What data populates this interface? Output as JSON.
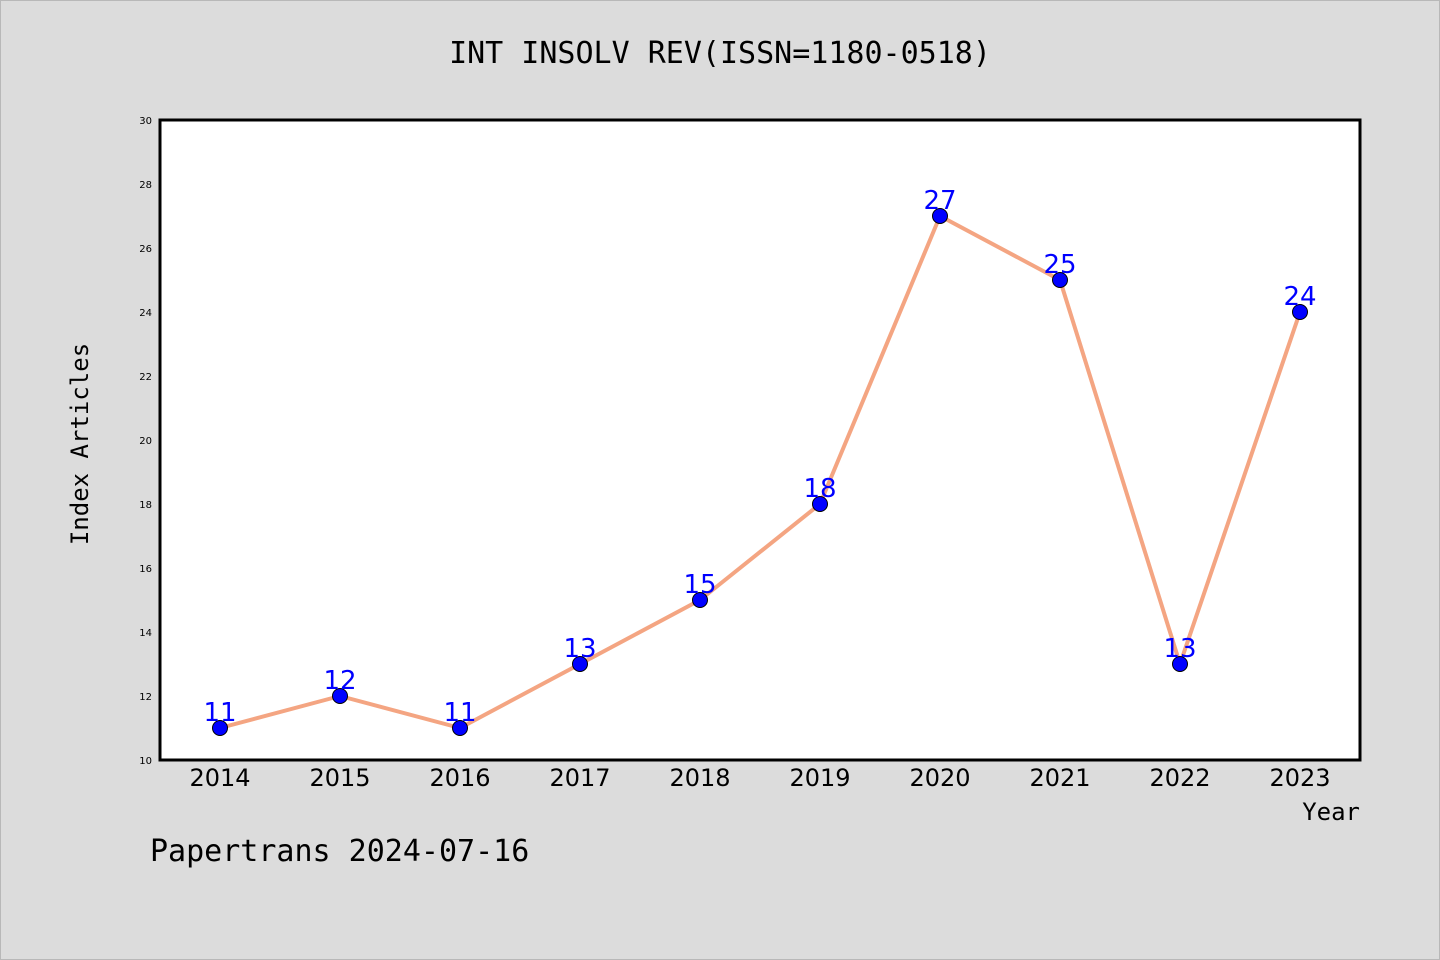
{
  "chart_data": {
    "type": "line",
    "title": "INT INSOLV REV(ISSN=1180-0518)",
    "xlabel": "Year",
    "ylabel": "Index Articles",
    "categories": [
      "2014",
      "2015",
      "2016",
      "2017",
      "2018",
      "2019",
      "2020",
      "2021",
      "2022",
      "2023"
    ],
    "values": [
      11,
      12,
      11,
      13,
      15,
      18,
      27,
      25,
      13,
      24
    ],
    "ylim": [
      10,
      30
    ],
    "yticks": [
      10,
      12,
      14,
      16,
      18,
      20,
      22,
      24,
      26,
      28,
      30
    ],
    "grid": false,
    "line_color": "#f4a582",
    "marker_color": "#0000ff",
    "label_color": "#0000ff"
  },
  "footer": "Papertrans 2024-07-16"
}
